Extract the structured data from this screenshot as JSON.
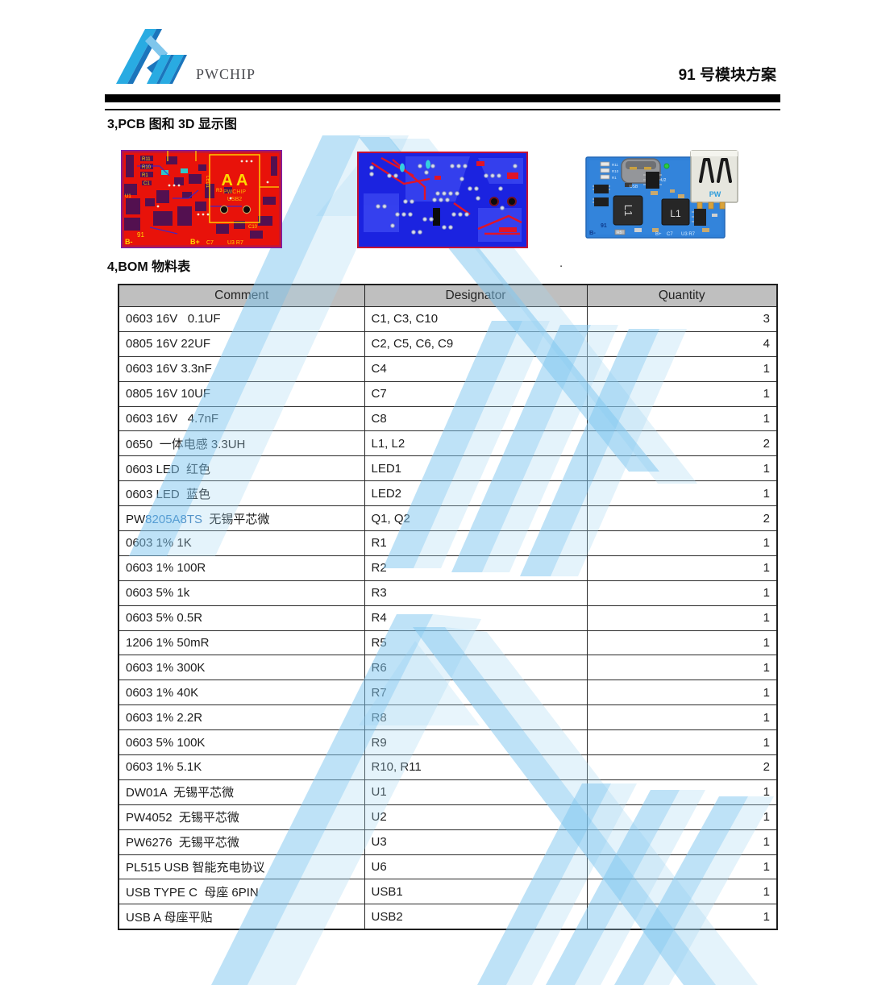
{
  "header": {
    "brand": "PWCHIP",
    "title": "91 号模块方案"
  },
  "sections": {
    "pcb": "3,PCB 图和 3D 显示图",
    "bom": "4,BOM 物料表",
    "stray_dot": "."
  },
  "pcb_top": {
    "silkscreen": {
      "big": "A A",
      "brand": "PWCHIP",
      "usb": "USB2",
      "r11": "R11",
      "r10": "R10",
      "r1": "R1",
      "c1": "C1",
      "u1": "U1",
      "led1": "LED1",
      "r3": "R3",
      "c10": "C10",
      "b_minus": "B-",
      "num": "91",
      "b_plus": "B+",
      "c7": "C7",
      "u3r7": "U3 R7"
    }
  },
  "pcb_3d": {
    "silkscreen": {
      "pw": "PW",
      "l1_left": "L1",
      "l1_right": "L1",
      "usb": "USB",
      "u2": "U2",
      "r11": "R11",
      "r10": "R10",
      "r1": "R1",
      "b_minus": "B-",
      "num": "91",
      "b_plus": "B+",
      "c7": "C7",
      "u3r7": "U3 R7",
      "r5": "R5"
    }
  },
  "bom": {
    "headers": [
      "Comment",
      "Designator",
      "Quantity"
    ],
    "highlight_color": "#2E75B6",
    "rows": [
      {
        "comment": "0603 16V   0.1UF",
        "designator": "C1, C3, C10",
        "qty": "3"
      },
      {
        "comment": "0805 16V 22UF",
        "designator": "C2, C5, C6, C9",
        "qty": "4"
      },
      {
        "comment": "0603 16V 3.3nF",
        "designator": "C4",
        "qty": "1"
      },
      {
        "comment": "0805 16V 10UF",
        "designator": "C7",
        "qty": "1"
      },
      {
        "comment": "0603 16V   4.7nF",
        "designator": "C8",
        "qty": "1"
      },
      {
        "comment": "0650  一体电感 3.3UH",
        "designator": "L1, L2",
        "qty": "2"
      },
      {
        "comment": "0603 LED  红色",
        "designator": "LED1",
        "qty": "1"
      },
      {
        "comment": "0603 LED  蓝色",
        "designator": "LED2",
        "qty": "1"
      },
      {
        "comment": "PW8205A8TS  无锡平芯微",
        "designator": "Q1, Q2",
        "qty": "2",
        "comment_parts": [
          {
            "text": "PW"
          },
          {
            "text": "8205A8TS",
            "blue": true
          },
          {
            "text": "  无锡平芯微"
          }
        ]
      },
      {
        "comment": "0603 1% 1K",
        "designator": "R1",
        "qty": "1"
      },
      {
        "comment": "0603 1% 100R",
        "designator": "R2",
        "qty": "1"
      },
      {
        "comment": "0603 5% 1k",
        "designator": "R3",
        "qty": "1"
      },
      {
        "comment": "0603 5% 0.5R",
        "designator": "R4",
        "qty": "1"
      },
      {
        "comment": "1206 1% 50mR",
        "designator": "R5",
        "qty": "1"
      },
      {
        "comment": "0603 1% 300K",
        "designator": "R6",
        "qty": "1"
      },
      {
        "comment": "0603 1% 40K",
        "designator": "R7",
        "qty": "1"
      },
      {
        "comment": "0603 1% 2.2R",
        "designator": "R8",
        "qty": "1"
      },
      {
        "comment": "0603 5% 100K",
        "designator": "R9",
        "qty": "1"
      },
      {
        "comment": "0603 1% 5.1K",
        "designator": "R10, R11",
        "qty": "2"
      },
      {
        "comment": "DW01A  无锡平芯微",
        "designator": "U1",
        "qty": "1"
      },
      {
        "comment": "PW4052  无锡平芯微",
        "designator": "U2",
        "qty": "1"
      },
      {
        "comment": "PW6276  无锡平芯微",
        "designator": "U3",
        "qty": "1"
      },
      {
        "comment": "PL515 USB 智能充电协议",
        "designator": "U6",
        "qty": "1"
      },
      {
        "comment": "USB TYPE C  母座 6PIN",
        "designator": "USB1",
        "qty": "1"
      },
      {
        "comment": "USB A 母座平贴",
        "designator": "USB2",
        "qty": "1"
      }
    ]
  },
  "colors": {
    "logo_blue": "#29ABE2",
    "logo_dark_blue": "#1B75BC",
    "watermark_blue": "#BCE2F5",
    "header_bg": "#BFBFBF",
    "pcb_red": "#E8120A",
    "pcb_blue": "#1B23E0",
    "board_blue": "#2F80D8"
  }
}
